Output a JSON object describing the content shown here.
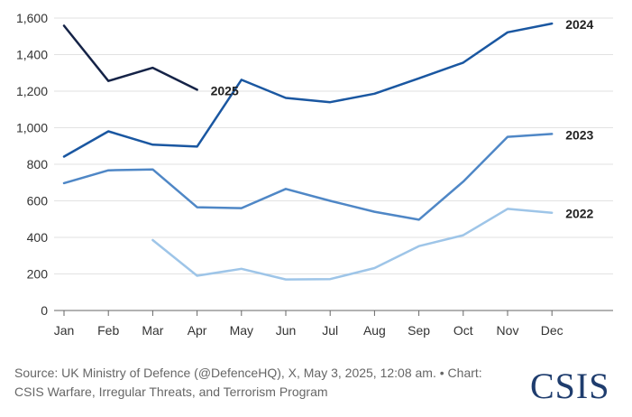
{
  "chart_data": {
    "type": "line",
    "title": "",
    "xlabel": "",
    "ylabel": "",
    "categories": [
      "Jan",
      "Feb",
      "Mar",
      "Apr",
      "May",
      "Jun",
      "Jul",
      "Aug",
      "Sep",
      "Oct",
      "Nov",
      "Dec"
    ],
    "y_ticks": [
      "0",
      "200",
      "400",
      "600",
      "800",
      "1,000",
      "1,200",
      "1,400",
      "1,600"
    ],
    "ylim": [
      0,
      1600
    ],
    "grid": true,
    "legend": "direct labels at line ends",
    "series": [
      {
        "name": "2022",
        "color": "#9ec5e8",
        "values": [
          null,
          null,
          385,
          190,
          228,
          170,
          172,
          232,
          352,
          412,
          556,
          535
        ]
      },
      {
        "name": "2023",
        "color": "#4f87c6",
        "values": [
          697,
          767,
          772,
          565,
          560,
          665,
          600,
          540,
          497,
          705,
          950,
          966
        ]
      },
      {
        "name": "2024",
        "color": "#1a57a1",
        "values": [
          842,
          980,
          907,
          897,
          1262,
          1163,
          1140,
          1186,
          1270,
          1356,
          1522,
          1570
        ]
      },
      {
        "name": "2025",
        "color": "#152347",
        "values": [
          1558,
          1256,
          1328,
          1208,
          null,
          null,
          null,
          null,
          null,
          null,
          null,
          null
        ]
      }
    ]
  },
  "footer": {
    "source": "Source: UK Ministry of Defence (@DefenceHQ), X, May 3, 2025, 12:08 am.",
    "chart_credit_1": "• Chart:",
    "chart_credit_2": "CSIS Warfare, Irregular Threats, and Terrorism Program"
  },
  "logo_text": "CSIS"
}
